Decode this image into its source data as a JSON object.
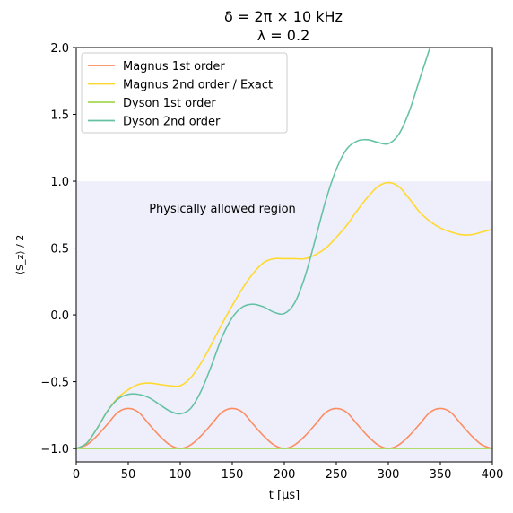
{
  "chart_data": {
    "type": "line",
    "title_lines": [
      "δ = 2π × 10 kHz",
      "λ = 0.2"
    ],
    "xlabel": "t [μs]",
    "ylabel": "⟨S_z⟩ / 2",
    "xlim": [
      0,
      400
    ],
    "ylim": [
      -1.1,
      2.0
    ],
    "xticks": [
      0,
      50,
      100,
      150,
      200,
      250,
      300,
      350,
      400
    ],
    "xtick_labels": [
      "0",
      "50",
      "100",
      "150",
      "200",
      "250",
      "300",
      "350",
      "400"
    ],
    "yticks": [
      -1.0,
      -0.5,
      0.0,
      0.5,
      1.0,
      1.5,
      2.0
    ],
    "ytick_labels": [
      "−1.0",
      "−0.5",
      "0.0",
      "0.5",
      "1.0",
      "1.5",
      "2.0"
    ],
    "grid": false,
    "legend_position": "top-left",
    "shaded_region": {
      "y_from": -1.1,
      "y_to": 1.0,
      "color": "#efeffb",
      "label": "Physically allowed region",
      "label_at": [
        70,
        0.8
      ]
    },
    "series": [
      {
        "name": "Magnus 1st order",
        "color": "#fc8d62",
        "x": [
          0,
          10,
          20,
          30,
          40,
          50,
          60,
          70,
          80,
          90,
          100,
          110,
          120,
          130,
          140,
          150,
          160,
          170,
          180,
          190,
          200,
          210,
          220,
          230,
          240,
          250,
          260,
          270,
          280,
          290,
          300,
          310,
          320,
          330,
          340,
          350,
          360,
          370,
          380,
          390,
          400
        ],
        "y": [
          -1.0,
          -0.973,
          -0.905,
          -0.818,
          -0.729,
          -0.7,
          -0.729,
          -0.818,
          -0.905,
          -0.973,
          -1.0,
          -0.973,
          -0.905,
          -0.818,
          -0.729,
          -0.7,
          -0.729,
          -0.818,
          -0.905,
          -0.973,
          -1.0,
          -0.973,
          -0.905,
          -0.818,
          -0.729,
          -0.7,
          -0.729,
          -0.818,
          -0.905,
          -0.973,
          -1.0,
          -0.973,
          -0.905,
          -0.818,
          -0.729,
          -0.7,
          -0.729,
          -0.818,
          -0.905,
          -0.973,
          -1.0
        ]
      },
      {
        "name": "Magnus 2nd order / Exact",
        "color": "#ffd92f",
        "x": [
          0,
          10,
          20,
          30,
          40,
          50,
          60,
          70,
          80,
          90,
          100,
          110,
          120,
          130,
          140,
          150,
          160,
          170,
          180,
          190,
          200,
          210,
          220,
          230,
          240,
          250,
          260,
          270,
          280,
          290,
          300,
          310,
          320,
          330,
          340,
          350,
          360,
          370,
          380,
          390,
          400
        ],
        "y": [
          -1.0,
          -0.96,
          -0.85,
          -0.72,
          -0.62,
          -0.56,
          -0.52,
          -0.51,
          -0.52,
          -0.53,
          -0.53,
          -0.47,
          -0.36,
          -0.22,
          -0.07,
          0.07,
          0.2,
          0.31,
          0.39,
          0.42,
          0.42,
          0.42,
          0.42,
          0.45,
          0.5,
          0.58,
          0.67,
          0.78,
          0.88,
          0.96,
          0.99,
          0.96,
          0.87,
          0.77,
          0.7,
          0.65,
          0.62,
          0.6,
          0.6,
          0.62,
          0.64
        ]
      },
      {
        "name": "Dyson 1st order",
        "color": "#a6d854",
        "x": [
          0,
          400
        ],
        "y": [
          -1.0,
          -1.0
        ]
      },
      {
        "name": "Dyson 2nd order",
        "color": "#66c2a5",
        "x": [
          0,
          10,
          20,
          30,
          40,
          50,
          60,
          70,
          80,
          90,
          100,
          110,
          120,
          130,
          140,
          150,
          160,
          170,
          180,
          190,
          200,
          210,
          220,
          230,
          240,
          250,
          260,
          270,
          280,
          290,
          300,
          310,
          320,
          330,
          340,
          350
        ],
        "y": [
          -1.0,
          -0.96,
          -0.85,
          -0.72,
          -0.63,
          -0.595,
          -0.595,
          -0.62,
          -0.67,
          -0.72,
          -0.74,
          -0.7,
          -0.57,
          -0.38,
          -0.17,
          -0.02,
          0.06,
          0.08,
          0.06,
          0.02,
          0.01,
          0.09,
          0.29,
          0.57,
          0.86,
          1.09,
          1.24,
          1.3,
          1.31,
          1.29,
          1.28,
          1.35,
          1.52,
          1.76,
          2.0,
          2.26
        ]
      }
    ]
  }
}
